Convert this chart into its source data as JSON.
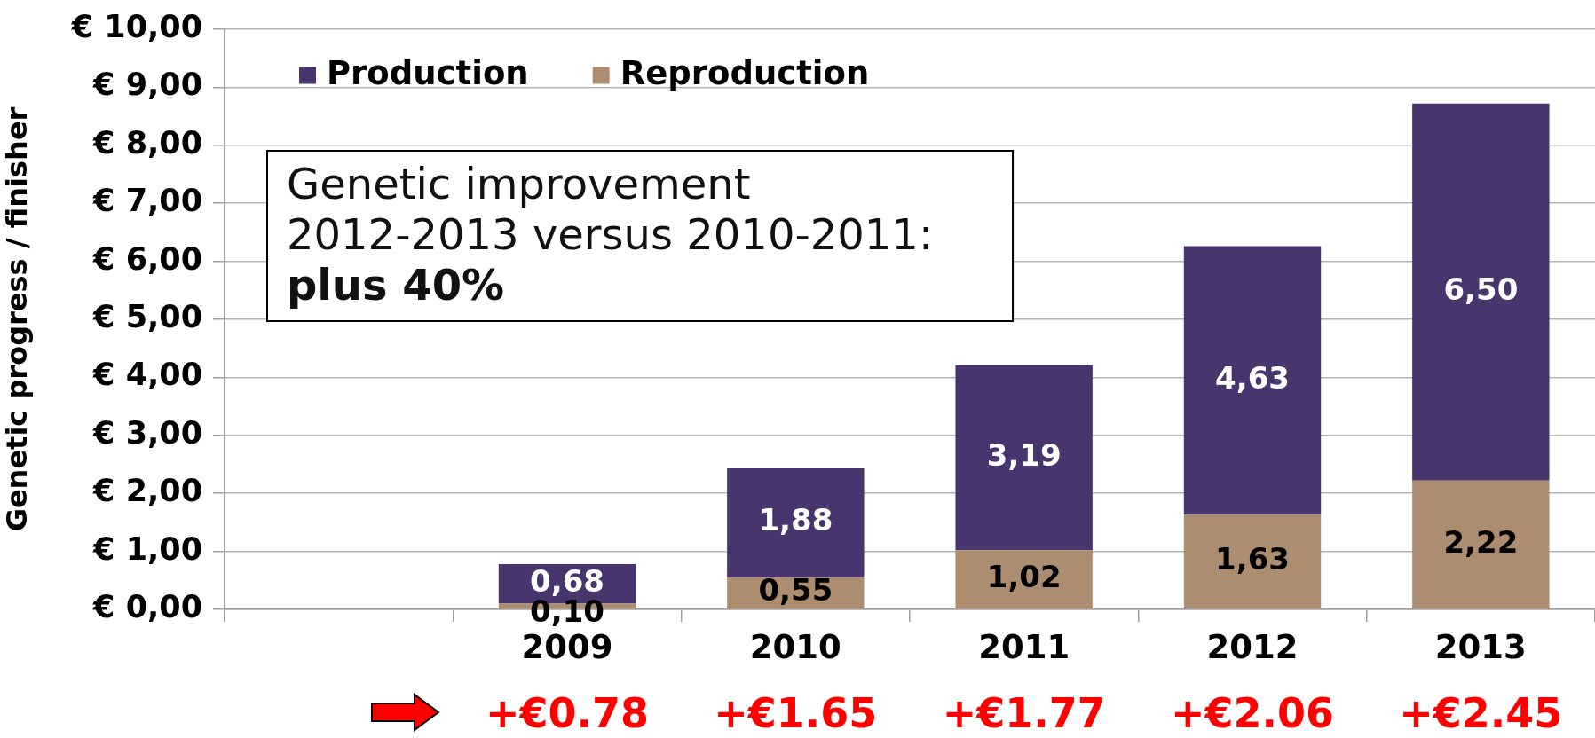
{
  "chart_data": {
    "type": "bar",
    "stacked": true,
    "ylabel": "Genetic progress / finisher",
    "categories": [
      null,
      "2009",
      "2010",
      "2011",
      "2012",
      "2013"
    ],
    "series": [
      {
        "name": "Reproduction",
        "color": "#ad8d70",
        "values": [
          null,
          0.1,
          0.55,
          1.02,
          1.63,
          2.22
        ],
        "value_labels": [
          null,
          "0,10",
          "0,55",
          "1,02",
          "1,63",
          "2,22"
        ]
      },
      {
        "name": "Production",
        "color": "#48356e",
        "values": [
          null,
          0.68,
          1.88,
          3.19,
          4.63,
          6.5
        ],
        "value_labels": [
          null,
          "0,68",
          "1,88",
          "3,19",
          "4,63",
          "6,50"
        ]
      }
    ],
    "ylim": [
      0,
      10
    ],
    "yticks": [
      {
        "value": 0,
        "label": "€ 0,00"
      },
      {
        "value": 1,
        "label": "€ 1,00"
      },
      {
        "value": 2,
        "label": "€ 2,00"
      },
      {
        "value": 3,
        "label": "€ 3,00"
      },
      {
        "value": 4,
        "label": "€ 4,00"
      },
      {
        "value": 5,
        "label": "€ 5,00"
      },
      {
        "value": 6,
        "label": "€ 6,00"
      },
      {
        "value": 7,
        "label": "€ 7,00"
      },
      {
        "value": 8,
        "label": "€ 8,00"
      },
      {
        "value": 9,
        "label": "€ 9,00"
      },
      {
        "value": 10,
        "label": "€ 10,00"
      }
    ],
    "grid": "y",
    "legend": "top left",
    "annotations": [
      "Genetic improvement\n2012-2013 versus 2010-2011:\nplus 40%",
      "+€0.78",
      "+€1.65",
      "+€1.77",
      "+€2.06",
      "+€2.45"
    ]
  }
}
